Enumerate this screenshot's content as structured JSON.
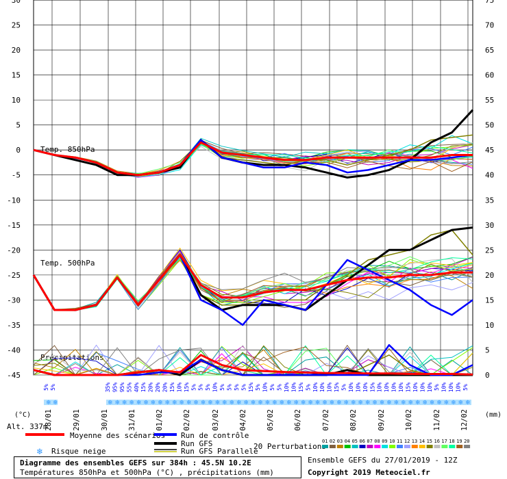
{
  "chart_data": {
    "type": "line",
    "x_dates": [
      "28/01",
      "29/01",
      "30/01",
      "31/01",
      "01/02",
      "02/02",
      "03/02",
      "04/02",
      "05/02",
      "06/02",
      "07/02",
      "08/02",
      "09/02",
      "10/02",
      "11/02",
      "12/02"
    ],
    "left_axis": {
      "unit_label": "(°C)",
      "ylim": [
        -45,
        30
      ],
      "ticks": [
        30,
        25,
        20,
        15,
        10,
        5,
        0,
        -5,
        -10,
        -15,
        -20,
        -25,
        -30,
        -35,
        -40,
        -45
      ]
    },
    "right_axis": {
      "unit_label": "(mm)",
      "ylim": [
        0,
        75
      ],
      "ticks": [
        75,
        70,
        65,
        60,
        55,
        50,
        45,
        40,
        35,
        30,
        25,
        20,
        15,
        10,
        5,
        0
      ]
    },
    "panel_labels": {
      "t850": "Temp. 850hPa",
      "t500": "Temp. 500hPa",
      "precip": "Précipitations"
    },
    "x_hours": [
      0,
      24,
      48,
      72,
      96,
      120,
      144,
      168,
      192,
      216,
      240,
      264,
      288,
      312,
      336,
      360,
      384
    ],
    "series": [
      {
        "name": "Moyenne des scénarios",
        "color": "#ff0000",
        "t850": [
          0,
          -1,
          -1.5,
          -2.5,
          -4.5,
          -5,
          -4.5,
          -3,
          1.5,
          -0.5,
          -1,
          -1.5,
          -2,
          -2,
          -1.5,
          -1.5,
          -1.5,
          -1.5,
          -1.5,
          -1.5,
          -1,
          -1
        ],
        "t500": [
          -25,
          -32,
          -32,
          -31,
          -25.5,
          -31,
          -26,
          -21,
          -27,
          -29.5,
          -29.5,
          -28.5,
          -28,
          -28,
          -27,
          -26,
          -25.5,
          -25.5,
          -25,
          -25,
          -24.5,
          -24.5
        ],
        "precip": [
          1,
          0,
          0,
          0,
          0,
          0.5,
          1,
          0.5,
          4,
          2,
          1,
          0.8,
          0.6,
          0.5,
          0.4,
          0.4,
          0.3,
          0.3,
          0.2,
          0.2,
          0.2,
          0.1
        ]
      },
      {
        "name": "Run de contrôle",
        "color": "#0000ff",
        "t850": [
          0,
          -1,
          -1.5,
          -2.5,
          -4.5,
          -5,
          -4.5,
          -3,
          2,
          -1.5,
          -2.5,
          -3.5,
          -3.5,
          -2.5,
          -3,
          -4.5,
          -4,
          -3,
          -2,
          -2,
          -1.5,
          -1
        ],
        "t500": [
          -25,
          -32,
          -32,
          -31,
          -25.5,
          -31,
          -26,
          -21,
          -30,
          -32,
          -35,
          -30,
          -31,
          -32,
          -27,
          -22,
          -24,
          -26,
          -28,
          -31,
          -33,
          -30
        ],
        "precip": [
          1,
          0,
          0,
          0,
          0,
          0,
          0.5,
          0.5,
          3,
          1,
          0,
          0,
          0,
          0,
          0,
          0,
          0,
          6,
          2,
          0,
          0,
          2
        ]
      },
      {
        "name": "Run GFS",
        "color": "#000000",
        "t850": [
          0,
          -1,
          -2,
          -3,
          -5,
          -5,
          -4.5,
          -3.5,
          2,
          -1.5,
          -2.5,
          -3,
          -3,
          -3.5,
          -4.5,
          -5.5,
          -5,
          -4,
          -2,
          1.5,
          3.5,
          8
        ],
        "t500": [
          -25,
          -32,
          -32,
          -31,
          -25.5,
          -31,
          -26,
          -21,
          -29,
          -32,
          -31,
          -31,
          -31,
          -32,
          -29,
          -26,
          -23,
          -20,
          -20,
          -18,
          -16,
          -15.5
        ],
        "precip": [
          1,
          0,
          0,
          0,
          0,
          0.5,
          1,
          0,
          3,
          1,
          0,
          0,
          0,
          0,
          0,
          1,
          0,
          0,
          0,
          0,
          0,
          0
        ]
      },
      {
        "name": "Run GFS Parallele",
        "color": "#808000",
        "t850": [
          0,
          -1,
          -2,
          -3,
          -5,
          -5,
          -4.5,
          -3.5,
          2,
          -1.5,
          -2,
          -2.5,
          -3,
          -2,
          -2,
          -3,
          -2,
          -1,
          0,
          2,
          2.5,
          3
        ],
        "t500": [
          -25,
          -32,
          -32,
          -31,
          -25.5,
          -31,
          -26,
          -21,
          -29,
          -31,
          -31,
          -30,
          -30,
          -30,
          -27,
          -25,
          -22,
          -21,
          -20,
          -17,
          -16,
          -21
        ],
        "precip": [
          1,
          0,
          0,
          0,
          0,
          0.5,
          1,
          0.5,
          3,
          1,
          0,
          0,
          0,
          0,
          0,
          0,
          2,
          4,
          1,
          0,
          0,
          0
        ]
      }
    ],
    "ensemble_label": "20 Perturbations",
    "ensemble_ids": [
      "01",
      "02",
      "03",
      "04",
      "05",
      "06",
      "07",
      "08",
      "09",
      "10",
      "11",
      "12",
      "13",
      "14",
      "15",
      "16",
      "17",
      "18",
      "19",
      "20"
    ],
    "ensemble_colors": [
      "#00a0a0",
      "#806040",
      "#c08000",
      "#00c000",
      "#00c0c0",
      "#0000c0",
      "#c000c0",
      "#ff00ff",
      "#00e0e0",
      "#80ff00",
      "#4080ff",
      "#a0a0ff",
      "#ff8000",
      "#ffc000",
      "#808000",
      "#c0c0c0",
      "#60ff60",
      "#00ffa0",
      "#a06020",
      "#808080"
    ],
    "snow_risk_percent": [
      "5%",
      "5%",
      "35%",
      "95%",
      "95%",
      "55%",
      "40%",
      "15%",
      "20%",
      "20%",
      "20%",
      "15%",
      "10%",
      "15%",
      "5%",
      "5%",
      "5%",
      "10%",
      "5%",
      "5%",
      "5%",
      "5%",
      "15%",
      "5%",
      "10%",
      "5%",
      "5%",
      "10%",
      "10%",
      "15%",
      "5%",
      "10%",
      "10%",
      "10%",
      "15%",
      "5%",
      "10%",
      "10%",
      "10%",
      "15%",
      "10%",
      "10%",
      "10%",
      "10%",
      "15%",
      "10%",
      "10%",
      "10%",
      "5%",
      "10%",
      "10%",
      "10%",
      "5%"
    ],
    "legend": {
      "mean": "Moyenne des scénarios",
      "control": "Run de contrôle",
      "gfs": "Run GFS",
      "gfs_par": "Run GFS Parallele",
      "snow": "Risque neige",
      "perturbations": "20 Perturbations"
    },
    "altitude": "Alt. 337m"
  },
  "footer": {
    "title": "Diagramme des ensembles GEFS sur 384h : 45.5N 10.2E",
    "subtitle": "Températures 850hPa et 500hPa (°C) , précipitations (mm)",
    "run_info": "Ensemble GEFS du 27/01/2019 - 12Z",
    "copyright": "Copyright 2019 Meteociel.fr"
  }
}
